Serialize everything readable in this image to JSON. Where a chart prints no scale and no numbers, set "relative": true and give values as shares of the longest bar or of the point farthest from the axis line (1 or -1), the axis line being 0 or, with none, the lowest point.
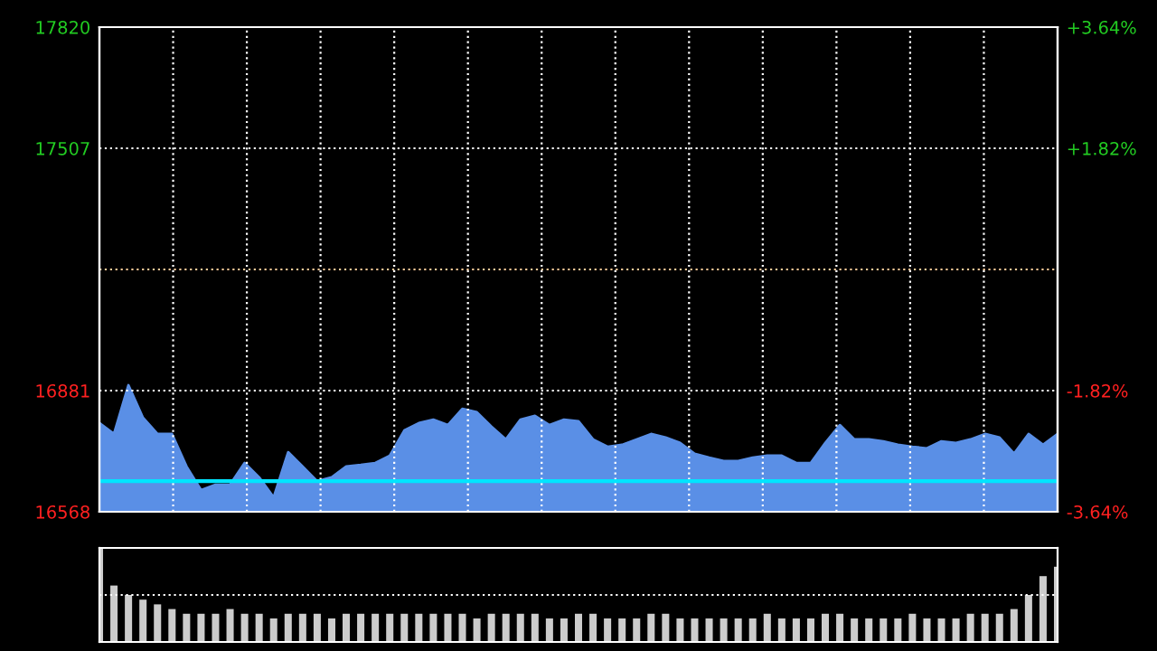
{
  "chart_data": [
    {
      "type": "area",
      "categories": [
        null,
        null,
        null,
        null,
        null,
        null,
        null,
        null,
        null,
        null,
        null,
        null,
        null,
        null,
        null,
        null,
        null,
        null,
        null,
        null,
        null,
        null,
        null,
        null,
        null,
        null,
        null,
        null,
        null,
        null,
        null,
        null,
        null,
        null,
        null,
        null,
        null,
        null,
        null,
        null,
        null,
        null,
        null,
        null,
        null,
        null,
        null,
        null,
        null,
        null,
        null,
        null,
        null,
        null,
        null,
        null,
        null,
        null,
        null,
        null,
        null,
        null,
        null,
        null,
        null,
        null,
        null
      ],
      "series": [
        {
          "color": "#5a8fe6",
          "values": [
            16797,
            16769,
            16895,
            16811,
            16769,
            16769,
            16685,
            16624,
            16638,
            16638,
            16694,
            16657,
            16605,
            16722,
            16685,
            16647,
            16657,
            16685,
            16689,
            16694,
            16713,
            16778,
            16797,
            16806,
            16792,
            16834,
            16825,
            16788,
            16755,
            16806,
            16816,
            16792,
            16806,
            16802,
            16755,
            16736,
            16741,
            16755,
            16769,
            16760,
            16746,
            16718,
            16708,
            16699,
            16699,
            16708,
            16713,
            16713,
            16694,
            16694,
            16746,
            16792,
            16755,
            16755,
            16750,
            16741,
            16736,
            16732,
            16750,
            16746,
            16755,
            16769,
            16760,
            16718,
            16769,
            16741,
            16769
          ]
        }
      ],
      "ylim": [
        16568,
        17820
      ],
      "yticks": [
        17820,
        17507,
        16881,
        16568
      ],
      "y2lim": [
        -3.64,
        3.64
      ],
      "y2ticks": [
        {
          "value": 3.64,
          "label": "+3.64%"
        },
        {
          "value": 1.82,
          "label": "+1.82%"
        },
        {
          "value": 0,
          "label": null
        },
        {
          "value": -1.82,
          "label": "-1.82%"
        },
        {
          "value": -3.64,
          "label": "-3.64%"
        }
      ],
      "ref_lines": [
        {
          "axis": "y",
          "value": 16647,
          "color": "#00e5ff"
        },
        {
          "axis": "y",
          "value": 17194,
          "color": "#ffcc99",
          "line_style": "dotted"
        }
      ],
      "grid": true
    },
    {
      "type": "bar",
      "relative": true,
      "color": "#cccccc",
      "categories": [
        null,
        null,
        null,
        null,
        null,
        null,
        null,
        null,
        null,
        null,
        null,
        null,
        null,
        null,
        null,
        null,
        null,
        null,
        null,
        null,
        null,
        null,
        null,
        null,
        null,
        null,
        null,
        null,
        null,
        null,
        null,
        null,
        null,
        null,
        null,
        null,
        null,
        null,
        null,
        null,
        null,
        null,
        null,
        null,
        null,
        null,
        null,
        null,
        null,
        null,
        null,
        null,
        null,
        null,
        null,
        null,
        null,
        null,
        null,
        null,
        null,
        null,
        null,
        null,
        null,
        null,
        null
      ],
      "values": [
        1,
        0.6,
        0.5,
        0.45,
        0.4,
        0.35,
        0.3,
        0.3,
        0.3,
        0.35,
        0.3,
        0.3,
        0.25,
        0.3,
        0.3,
        0.3,
        0.25,
        0.3,
        0.3,
        0.3,
        0.3,
        0.3,
        0.3,
        0.3,
        0.3,
        0.3,
        0.25,
        0.3,
        0.3,
        0.3,
        0.3,
        0.25,
        0.25,
        0.3,
        0.3,
        0.25,
        0.25,
        0.25,
        0.3,
        0.3,
        0.25,
        0.25,
        0.25,
        0.25,
        0.25,
        0.25,
        0.3,
        0.25,
        0.25,
        0.25,
        0.3,
        0.3,
        0.25,
        0.25,
        0.25,
        0.25,
        0.3,
        0.25,
        0.25,
        0.25,
        0.3,
        0.3,
        0.3,
        0.35,
        0.5,
        0.7,
        0.8
      ],
      "ref_lines": [
        {
          "axis": "y",
          "value": 0.5,
          "color": "#ffffff",
          "line_style": "dotted"
        }
      ]
    }
  ]
}
